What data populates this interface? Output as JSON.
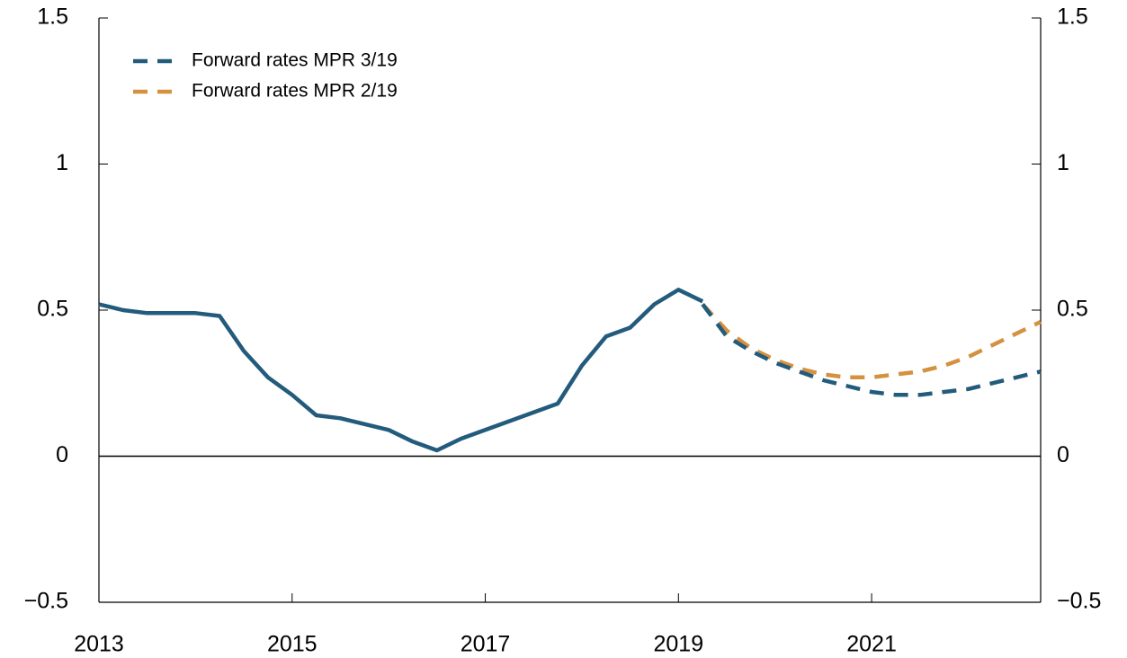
{
  "chart_data": {
    "type": "line",
    "x": [
      2013,
      2013.25,
      2013.5,
      2013.75,
      2014,
      2014.25,
      2014.5,
      2014.75,
      2015,
      2015.25,
      2015.5,
      2015.75,
      2016,
      2016.25,
      2016.5,
      2016.75,
      2017,
      2017.25,
      2017.5,
      2017.75,
      2018,
      2018.25,
      2018.5,
      2018.75,
      2019,
      2019.25,
      2019.5,
      2019.75,
      2020,
      2020.25,
      2020.5,
      2020.75,
      2021,
      2021.25,
      2021.5,
      2021.75,
      2022,
      2022.25,
      2022.5,
      2022.75
    ],
    "series": [
      {
        "color": "#235b7c",
        "style": "solid",
        "values": [
          0.52,
          0.5,
          0.49,
          0.49,
          0.49,
          0.48,
          0.36,
          0.27,
          0.21,
          0.14,
          0.13,
          0.11,
          0.09,
          0.05,
          0.02,
          0.06,
          0.09,
          0.12,
          0.15,
          0.18,
          0.31,
          0.41,
          0.44,
          0.52,
          0.57,
          0.53,
          null,
          null,
          null,
          null,
          null,
          null,
          null,
          null,
          null,
          null,
          null,
          null,
          null,
          null
        ]
      },
      {
        "name": "Forward rates MPR 3/19",
        "color": "#235b7c",
        "style": "dashed",
        "values": [
          null,
          null,
          null,
          null,
          null,
          null,
          null,
          null,
          null,
          null,
          null,
          null,
          null,
          null,
          null,
          null,
          null,
          null,
          null,
          null,
          null,
          null,
          null,
          null,
          null,
          0.52,
          0.41,
          0.36,
          0.32,
          0.29,
          0.26,
          0.24,
          0.22,
          0.21,
          0.21,
          0.22,
          0.23,
          0.25,
          0.27,
          0.29
        ]
      },
      {
        "name": "Forward rates MPR 2/19",
        "color": "#d4913f",
        "style": "dashed",
        "values": [
          null,
          null,
          null,
          null,
          null,
          null,
          null,
          null,
          null,
          null,
          null,
          null,
          null,
          null,
          null,
          null,
          null,
          null,
          null,
          null,
          null,
          null,
          null,
          null,
          null,
          0.52,
          0.43,
          0.37,
          0.33,
          0.3,
          0.28,
          0.27,
          0.27,
          0.28,
          0.29,
          0.31,
          0.34,
          0.38,
          0.42,
          0.46
        ]
      }
    ],
    "xlim": [
      2013,
      2022.75
    ],
    "xticks": [
      2013,
      2015,
      2017,
      2019,
      2021
    ],
    "ylim": [
      -0.5,
      1.5
    ],
    "yticks": [
      {
        "value": -0.5,
        "label": "−0.5"
      },
      0,
      0.5,
      1,
      1.5
    ],
    "y2lim": [
      -0.5,
      1.5
    ],
    "y2ticks": [
      {
        "value": -0.5,
        "label": "−0.5"
      },
      0,
      0.5,
      1,
      1.5
    ],
    "legend": "upper left"
  }
}
